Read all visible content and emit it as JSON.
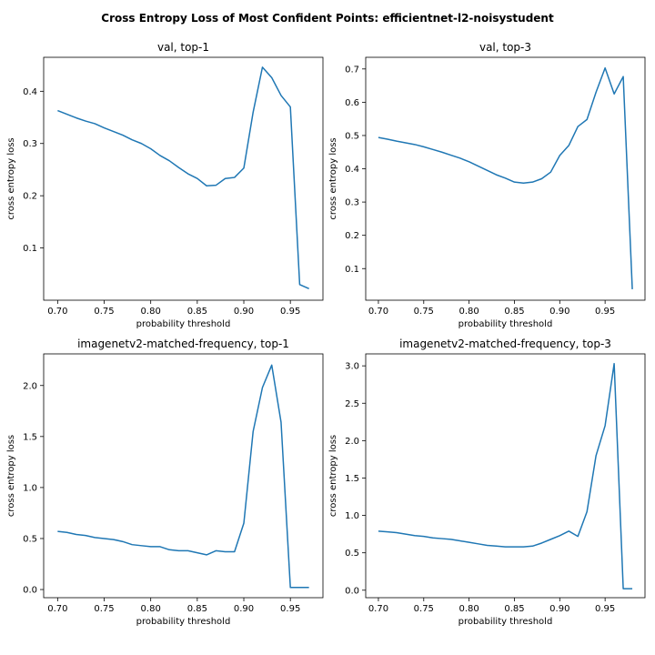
{
  "figure": {
    "title": "Cross Entropy Loss of Most Confident Points: efficientnet-l2-noisystudent"
  },
  "colors": {
    "line": "#1f77b4",
    "axes": "#000000"
  },
  "chart_data": [
    {
      "type": "line",
      "title": "val, top-1",
      "xlabel": "probability threshold",
      "ylabel": "cross entropy loss",
      "xlim": [
        0.685,
        0.985
      ],
      "ylim": [
        0.0,
        0.465
      ],
      "xticks": [
        "0.70",
        "0.75",
        "0.80",
        "0.85",
        "0.90",
        "0.95"
      ],
      "yticks": [
        "0.1",
        "0.2",
        "0.3",
        "0.4"
      ],
      "series": [
        {
          "x": [
            0.7,
            0.71,
            0.72,
            0.73,
            0.74,
            0.75,
            0.76,
            0.77,
            0.78,
            0.79,
            0.8,
            0.81,
            0.82,
            0.83,
            0.84,
            0.85,
            0.86,
            0.87,
            0.88,
            0.89,
            0.9,
            0.91,
            0.92,
            0.93,
            0.94,
            0.95,
            0.96,
            0.97
          ],
          "y": [
            0.363,
            0.356,
            0.349,
            0.343,
            0.338,
            0.33,
            0.323,
            0.316,
            0.307,
            0.3,
            0.29,
            0.277,
            0.267,
            0.254,
            0.242,
            0.233,
            0.219,
            0.22,
            0.233,
            0.235,
            0.253,
            0.36,
            0.446,
            0.426,
            0.392,
            0.37,
            0.03,
            0.022
          ]
        }
      ]
    },
    {
      "type": "line",
      "title": "val, top-3",
      "xlabel": "probability threshold",
      "ylabel": "cross entropy loss",
      "xlim": [
        0.686,
        0.994
      ],
      "ylim": [
        0.005,
        0.735
      ],
      "xticks": [
        "0.70",
        "0.75",
        "0.80",
        "0.85",
        "0.90",
        "0.95"
      ],
      "yticks": [
        "0.1",
        "0.2",
        "0.3",
        "0.4",
        "0.5",
        "0.6",
        "0.7"
      ],
      "series": [
        {
          "x": [
            0.7,
            0.71,
            0.72,
            0.73,
            0.74,
            0.75,
            0.76,
            0.77,
            0.78,
            0.79,
            0.8,
            0.81,
            0.82,
            0.83,
            0.84,
            0.85,
            0.86,
            0.87,
            0.88,
            0.89,
            0.9,
            0.91,
            0.92,
            0.93,
            0.94,
            0.95,
            0.96,
            0.97,
            0.98
          ],
          "y": [
            0.494,
            0.489,
            0.483,
            0.478,
            0.473,
            0.466,
            0.458,
            0.45,
            0.441,
            0.432,
            0.421,
            0.408,
            0.395,
            0.382,
            0.372,
            0.36,
            0.357,
            0.36,
            0.37,
            0.39,
            0.44,
            0.47,
            0.527,
            0.548,
            0.63,
            0.703,
            0.625,
            0.677,
            0.038
          ]
        }
      ]
    },
    {
      "type": "line",
      "title": "imagenetv2-matched-frequency, top-1",
      "xlabel": "probability threshold",
      "ylabel": "cross entropy loss",
      "xlim": [
        0.685,
        0.985
      ],
      "ylim": [
        -0.08,
        2.31
      ],
      "xticks": [
        "0.70",
        "0.75",
        "0.80",
        "0.85",
        "0.90",
        "0.95"
      ],
      "yticks": [
        "0.0",
        "0.5",
        "1.0",
        "1.5",
        "2.0"
      ],
      "series": [
        {
          "x": [
            0.7,
            0.71,
            0.72,
            0.73,
            0.74,
            0.75,
            0.76,
            0.77,
            0.78,
            0.79,
            0.8,
            0.81,
            0.82,
            0.83,
            0.84,
            0.85,
            0.86,
            0.87,
            0.88,
            0.89,
            0.9,
            0.91,
            0.92,
            0.93,
            0.94,
            0.95,
            0.96,
            0.97
          ],
          "y": [
            0.57,
            0.56,
            0.54,
            0.53,
            0.51,
            0.5,
            0.49,
            0.47,
            0.44,
            0.43,
            0.42,
            0.42,
            0.39,
            0.38,
            0.38,
            0.36,
            0.34,
            0.38,
            0.37,
            0.37,
            0.65,
            1.55,
            1.98,
            2.2,
            1.64,
            0.02,
            0.02,
            0.02
          ]
        }
      ]
    },
    {
      "type": "line",
      "title": "imagenetv2-matched-frequency, top-3",
      "xlabel": "probability threshold",
      "ylabel": "cross entropy loss",
      "xlim": [
        0.686,
        0.994
      ],
      "ylim": [
        -0.1,
        3.16
      ],
      "xticks": [
        "0.70",
        "0.75",
        "0.80",
        "0.85",
        "0.90",
        "0.95"
      ],
      "yticks": [
        "0.0",
        "0.5",
        "1.0",
        "1.5",
        "2.0",
        "2.5",
        "3.0"
      ],
      "series": [
        {
          "x": [
            0.7,
            0.71,
            0.72,
            0.73,
            0.74,
            0.75,
            0.76,
            0.77,
            0.78,
            0.79,
            0.8,
            0.81,
            0.82,
            0.83,
            0.84,
            0.85,
            0.86,
            0.87,
            0.88,
            0.89,
            0.9,
            0.91,
            0.92,
            0.93,
            0.94,
            0.95,
            0.96,
            0.97,
            0.98
          ],
          "y": [
            0.79,
            0.78,
            0.77,
            0.75,
            0.73,
            0.72,
            0.7,
            0.69,
            0.68,
            0.66,
            0.64,
            0.62,
            0.6,
            0.59,
            0.58,
            0.58,
            0.58,
            0.59,
            0.63,
            0.68,
            0.73,
            0.79,
            0.72,
            1.05,
            1.8,
            2.2,
            3.03,
            0.02,
            0.02
          ]
        }
      ]
    }
  ]
}
